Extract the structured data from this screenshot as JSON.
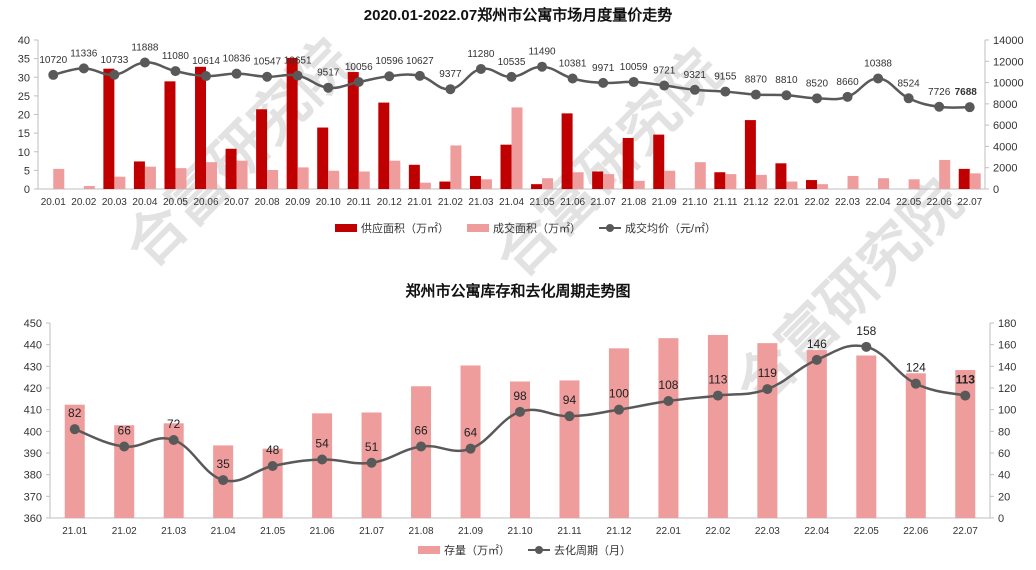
{
  "watermark": "合富研究院",
  "colors": {
    "supply": "#C00000",
    "deal": "#EE9C9C",
    "line": "#595959",
    "stock": "#EE9C9C"
  },
  "chart_data": [
    {
      "type": "bar+line",
      "title": "2020.01-2022.07郑州市公寓市场月度量价走势",
      "categories": [
        "20.01",
        "20.02",
        "20.03",
        "20.04",
        "20.05",
        "20.06",
        "20.07",
        "20.08",
        "20.09",
        "20.10",
        "20.11",
        "20.12",
        "21.01",
        "21.02",
        "21.03",
        "21.04",
        "21.05",
        "21.06",
        "21.07",
        "21.08",
        "21.09",
        "21.10",
        "21.11",
        "21.12",
        "22.01",
        "22.02",
        "22.03",
        "22.04",
        "22.05",
        "22.06",
        "22.07"
      ],
      "ylim_left": [
        0,
        40
      ],
      "yticks_left": [
        "0",
        "5",
        "10",
        "15",
        "20",
        "25",
        "30",
        "35",
        "40"
      ],
      "ylim_right": [
        0,
        14000
      ],
      "yticks_right": [
        "0",
        "2000",
        "4000",
        "6000",
        "8000",
        "10000",
        "12000",
        "14000"
      ],
      "series": [
        {
          "name": "供应面积（万㎡）",
          "axis": "left",
          "kind": "bar",
          "values": [
            0,
            0,
            32.3,
            7.4,
            28.9,
            32.8,
            10.8,
            21.4,
            35.2,
            16.5,
            31.4,
            23.2,
            6.5,
            2.0,
            3.5,
            11.9,
            1.3,
            20.3,
            4.7,
            13.7,
            14.6,
            0,
            4.5,
            18.5,
            6.9,
            2.4,
            0,
            0,
            0,
            0,
            5.4
          ]
        },
        {
          "name": "成交面积（万㎡）",
          "axis": "left",
          "kind": "bar",
          "values": [
            5.4,
            0.8,
            3.3,
            6.0,
            5.6,
            7.2,
            7.6,
            5.1,
            5.8,
            4.9,
            4.7,
            7.6,
            1.7,
            11.7,
            2.6,
            21.9,
            2.9,
            4.5,
            4.0,
            2.2,
            4.9,
            7.2,
            4.0,
            3.8,
            2.0,
            1.3,
            3.5,
            2.9,
            2.6,
            7.8,
            4.2
          ]
        },
        {
          "name": "成交均价（元/㎡）",
          "axis": "right",
          "kind": "line",
          "values": [
            10720,
            11336,
            10733,
            11888,
            11080,
            10614,
            10836,
            10547,
            10651,
            9517,
            10056,
            10596,
            10627,
            9377,
            11280,
            10535,
            11490,
            10381,
            9971,
            10059,
            9721,
            9321,
            9155,
            8870,
            8810,
            8520,
            8660,
            10388,
            8524,
            7726,
            7688
          ],
          "labels": [
            "10720",
            "11336",
            "10733",
            "11888",
            "11080",
            "10614",
            "10836",
            "10547",
            "10651",
            "9517",
            "10056",
            "10596",
            "10627",
            "9377",
            "11280",
            "10535",
            "11490",
            "10381",
            "9971",
            "10059",
            "9721",
            "9321",
            "9155",
            "8870",
            "8810",
            "8520",
            "8660",
            "10388",
            "8524",
            "7726",
            "7688"
          ]
        }
      ],
      "legend": "bottom"
    },
    {
      "type": "bar+line",
      "title": "郑州市公寓库存和去化周期走势图",
      "categories": [
        "21.01",
        "21.02",
        "21.03",
        "21.04",
        "21.05",
        "21.06",
        "21.07",
        "21.08",
        "21.09",
        "21.10",
        "21.11",
        "21.12",
        "22.01",
        "22.02",
        "22.03",
        "22.04",
        "22.05",
        "22.06",
        "22.07"
      ],
      "ylim_left": [
        360,
        450
      ],
      "yticks_left": [
        "360",
        "370",
        "380",
        "390",
        "400",
        "410",
        "420",
        "430",
        "440",
        "450"
      ],
      "ylim_right": [
        0,
        180
      ],
      "yticks_right": [
        "0",
        "20",
        "40",
        "60",
        "80",
        "100",
        "120",
        "140",
        "160",
        "180"
      ],
      "series": [
        {
          "name": "存量（万㎡）",
          "axis": "left",
          "kind": "bar",
          "values": [
            412.3,
            402.8,
            403.7,
            393.5,
            392.0,
            408.3,
            408.7,
            420.8,
            430.4,
            423.0,
            423.5,
            438.3,
            443.0,
            444.5,
            440.7,
            437.5,
            435.0,
            426.8,
            428.3
          ]
        },
        {
          "name": "去化周期（月）",
          "axis": "right",
          "kind": "line",
          "values": [
            82,
            66,
            72,
            35,
            48,
            54,
            51,
            66,
            64,
            98,
            94,
            100,
            108,
            113,
            119,
            146,
            158,
            124,
            113
          ],
          "labels": [
            "82",
            "66",
            "72",
            "35",
            "48",
            "54",
            "51",
            "66",
            "64",
            "98",
            "94",
            "100",
            "108",
            "113",
            "119",
            "146",
            "158",
            "124",
            "113"
          ]
        }
      ],
      "legend": "bottom"
    }
  ]
}
